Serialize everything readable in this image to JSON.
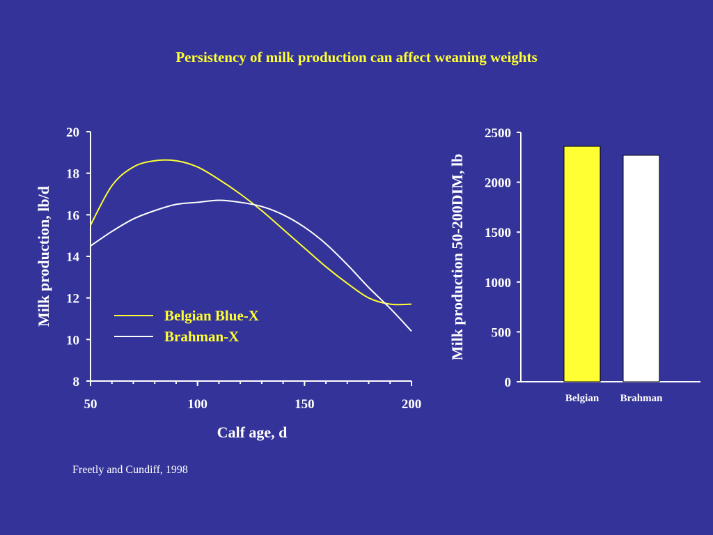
{
  "title": "Persistency of milk production can affect weaning weights",
  "source": "Freetly and Cundiff, 1998",
  "colors": {
    "background": "#333399",
    "belgian": "#ffff33",
    "brahman": "#ffffff"
  },
  "chart_data": [
    {
      "type": "line",
      "xlabel": "Calf age, d",
      "ylabel": "Milk production, lb/d",
      "xlim": [
        50,
        200
      ],
      "ylim": [
        8,
        20
      ],
      "xticks": [
        "50",
        "100",
        "150",
        "200"
      ],
      "yticks": [
        "8",
        "10",
        "12",
        "14",
        "16",
        "18",
        "20"
      ],
      "legend_position": "center-left",
      "series": [
        {
          "name": "Belgian Blue-X",
          "color": "#ffff33",
          "x": [
            50,
            60,
            70,
            80,
            90,
            100,
            110,
            120,
            130,
            140,
            150,
            160,
            170,
            180,
            190,
            200
          ],
          "y": [
            15.5,
            17.4,
            18.3,
            18.6,
            18.6,
            18.3,
            17.7,
            17.0,
            16.2,
            15.3,
            14.4,
            13.5,
            12.7,
            12.0,
            11.7,
            11.7
          ]
        },
        {
          "name": "Brahman-X",
          "color": "#ffffff",
          "x": [
            50,
            60,
            70,
            80,
            90,
            100,
            110,
            120,
            130,
            140,
            150,
            160,
            170,
            180,
            190,
            200
          ],
          "y": [
            14.5,
            15.2,
            15.8,
            16.2,
            16.5,
            16.6,
            16.7,
            16.6,
            16.4,
            16.0,
            15.4,
            14.6,
            13.6,
            12.5,
            11.5,
            10.4
          ]
        }
      ]
    },
    {
      "type": "bar",
      "ylabel": "Milk production 50-200DIM, lb",
      "ylim": [
        0,
        2500
      ],
      "yticks": [
        "0",
        "500",
        "1000",
        "1500",
        "2000",
        "2500"
      ],
      "categories": [
        "Belgian",
        "Brahman"
      ],
      "values": [
        2360,
        2270
      ],
      "colors": [
        "#ffff33",
        "#ffffff"
      ]
    }
  ]
}
